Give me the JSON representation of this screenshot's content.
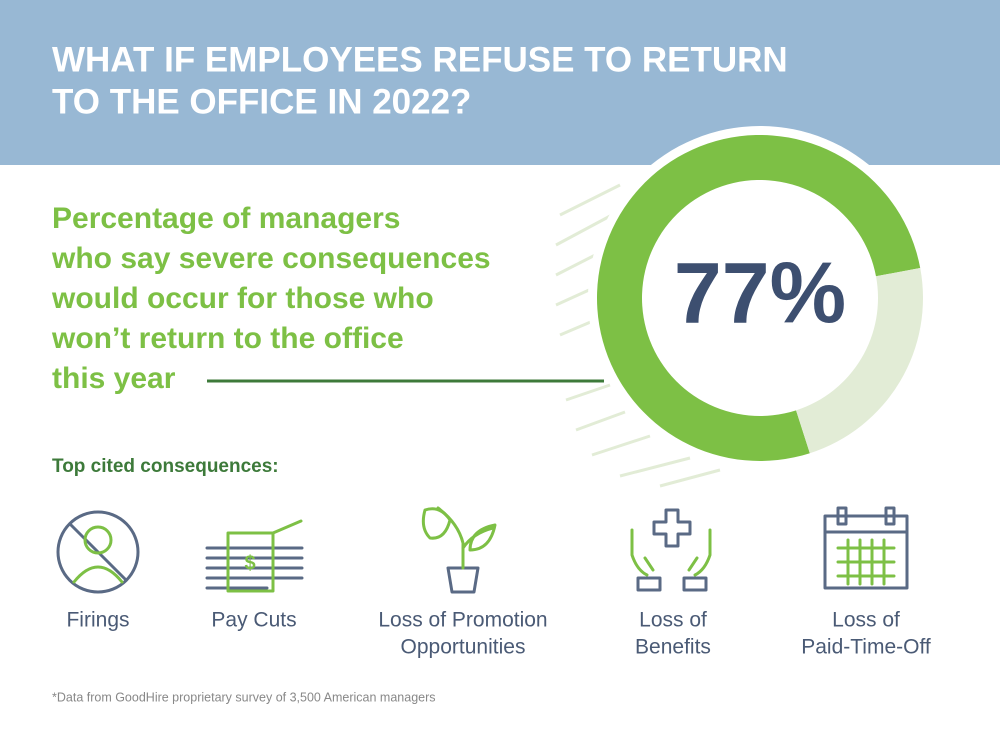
{
  "header": {
    "title_lines": [
      "WHAT IF EMPLOYEES REFUSE TO RETURN",
      "TO THE OFFICE IN 2022?"
    ]
  },
  "headline": {
    "lines": [
      "Percentage of managers",
      "who say severe consequences",
      "would occur for those who",
      "won’t return to the office",
      "this year"
    ]
  },
  "donut": {
    "values": [
      77,
      23
    ],
    "colors": [
      "#7dc045",
      "#e2ecd6"
    ],
    "label": "77%"
  },
  "consequences": {
    "title": "Top cited consequences:",
    "items": [
      {
        "lines": [
          "Firings"
        ]
      },
      {
        "lines": [
          "Pay Cuts"
        ]
      },
      {
        "lines": [
          "Loss of Promotion",
          "Opportunities"
        ]
      },
      {
        "lines": [
          "Loss of",
          "Benefits"
        ]
      },
      {
        "lines": [
          "Loss of",
          "Paid-Time-Off"
        ]
      }
    ]
  },
  "footnote": "*Data from GoodHire proprietary survey of 3,500 American managers"
}
